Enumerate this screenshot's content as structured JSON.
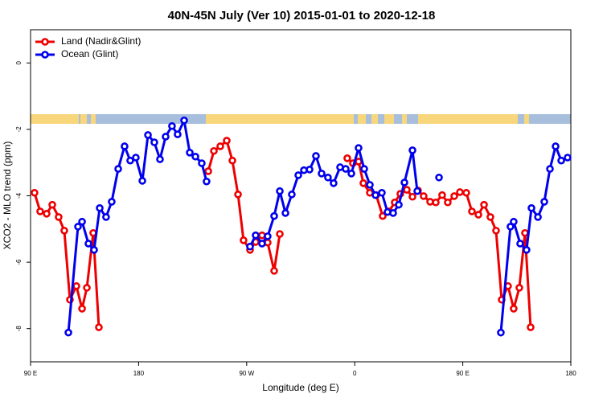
{
  "chart_data": {
    "type": "line",
    "title": "40N-45N July (Ver 10)   2015-01-01 to 2020-12-18",
    "xlabel": "Longitude (deg E)",
    "ylabel": "XCO2 - MLO trend (ppm)",
    "xlim": [
      90,
      540
    ],
    "xticks": [
      {
        "value": 90,
        "label": "90 E"
      },
      180,
      {
        "value": 270,
        "label": "90 W"
      },
      {
        "value": 360,
        "label": "0"
      },
      {
        "value": 450,
        "label": "90 E"
      },
      {
        "value": 540,
        "label": "180"
      }
    ],
    "ylim": [
      -9,
      1
    ],
    "yticks": [
      -8,
      -6,
      -4,
      -2,
      0
    ],
    "legend": "top-left",
    "series": [
      {
        "name": "Land (Nadir&Glint)",
        "color": "#ee0000",
        "x": [
          93.3,
          98.0,
          103.4,
          108.1,
          113.4,
          118.1,
          122.8,
          128.2,
          132.9,
          136.9,
          142.2,
          146.9,
          null,
          238.0,
          242.7,
          248.0,
          253.4,
          258.1,
          262.8,
          267.4,
          272.8,
          277.5,
          282.8,
          287.5,
          292.9,
          297.6,
          null,
          353.8,
          358.5,
          363.2,
          367.2,
          372.6,
          377.9,
          383.3,
          388.6,
          393.3,
          398.0,
          403.4,
          408.1,
          412.7,
          417.4,
          422.8,
          427.5,
          432.8,
          437.5,
          442.9,
          447.6,
          452.9,
          457.6,
          463.0,
          467.7,
          473.0,
          477.7,
          482.4,
          487.7,
          492.4,
          497.1,
          501.8,
          506.5
        ],
        "values": [
          -3.91,
          -4.47,
          -4.54,
          -4.27,
          -4.64,
          -5.05,
          -7.13,
          -6.72,
          -7.4,
          -6.77,
          -5.12,
          -7.96,
          null,
          -3.26,
          -2.65,
          -2.51,
          -2.34,
          -2.94,
          -3.96,
          -5.34,
          -5.63,
          -5.39,
          -5.19,
          -5.41,
          -6.26,
          -5.15,
          null,
          -2.87,
          -3.02,
          -2.97,
          -3.62,
          -3.91,
          -3.98,
          -4.61,
          -4.47,
          -4.2,
          -3.94,
          -3.82,
          -4.03,
          -3.84,
          -4.01,
          -4.18,
          -4.2,
          -3.98,
          -4.2,
          -4.01,
          -3.89,
          -3.91,
          -4.47,
          -4.57,
          -4.27,
          -4.64,
          -5.05,
          -7.13,
          -6.72,
          -7.4,
          -6.77,
          -5.12,
          -7.96
        ]
      },
      {
        "name": "Ocean (Glint)",
        "color": "#0000ee",
        "x": [
          121.5,
          129.5,
          132.9,
          138.2,
          142.9,
          147.6,
          152.9,
          157.6,
          163.0,
          168.3,
          173.0,
          177.7,
          183.1,
          187.8,
          193.1,
          197.8,
          202.5,
          207.8,
          212.5,
          217.9,
          222.6,
          227.3,
          232.6,
          236.6,
          null,
          272.8,
          277.5,
          282.8,
          287.5,
          292.9,
          297.6,
          302.3,
          307.6,
          313.0,
          317.7,
          322.4,
          327.7,
          332.4,
          337.7,
          342.4,
          347.8,
          352.5,
          357.2,
          363.2,
          367.9,
          372.6,
          377.3,
          382.6,
          387.3,
          392.0,
          396.7,
          401.4,
          408.1,
          412.1,
          null,
          430.2,
          null,
          481.7,
          489.7,
          492.4,
          497.8,
          503.1,
          507.2,
          512.6,
          517.9,
          522.6,
          527.3,
          532.0,
          537.3
        ],
        "values": [
          -8.12,
          -4.93,
          -4.78,
          -5.44,
          -5.63,
          -4.37,
          -4.64,
          -4.18,
          -3.19,
          -2.51,
          -2.94,
          -2.85,
          -3.55,
          -2.17,
          -2.39,
          -2.9,
          -2.22,
          -1.9,
          -2.15,
          -1.73,
          -2.7,
          -2.82,
          -3.02,
          -3.57,
          null,
          -5.53,
          -5.19,
          -5.44,
          -5.22,
          -4.61,
          -3.86,
          -4.52,
          -3.96,
          -3.38,
          -3.23,
          -3.21,
          -2.8,
          -3.33,
          -3.45,
          -3.62,
          -3.14,
          -3.19,
          -3.33,
          -2.56,
          -3.19,
          -3.67,
          -3.98,
          -3.91,
          -4.49,
          -4.52,
          -4.27,
          -3.6,
          -2.63,
          -3.86,
          null,
          -3.45,
          null,
          -8.12,
          -4.93,
          -4.78,
          -5.44,
          -5.63,
          -4.37,
          -4.64,
          -4.18,
          -3.19,
          -2.51,
          -2.94,
          -2.85
        ]
      }
    ]
  }
}
